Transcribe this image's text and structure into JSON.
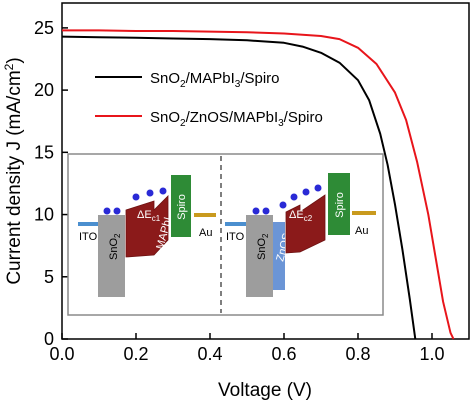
{
  "chart_data": {
    "type": "line",
    "xlabel": "Voltage (V)",
    "ylabel": "Current density J (mA/cm²)",
    "xlim": [
      0.0,
      1.1
    ],
    "ylim": [
      0,
      27
    ],
    "x_ticks": [
      "0.0",
      "0.2",
      "0.4",
      "0.6",
      "0.8",
      "1.0"
    ],
    "y_ticks": [
      "0",
      "5",
      "10",
      "15",
      "20",
      "25"
    ],
    "legend": {
      "placement": "top-center",
      "entries": [
        {
          "label": "SnO2/MAPbI3/Spiro",
          "color": "#000000"
        },
        {
          "label": "SnO2/ZnOS/MAPbI3/Spiro",
          "color": "#e8151b"
        }
      ]
    },
    "series": [
      {
        "name": "SnO2/MAPbI3/Spiro",
        "color": "#000000",
        "points": [
          [
            0.0,
            24.3
          ],
          [
            0.1,
            24.25
          ],
          [
            0.2,
            24.2
          ],
          [
            0.3,
            24.15
          ],
          [
            0.4,
            24.1
          ],
          [
            0.5,
            24.0
          ],
          [
            0.6,
            23.8
          ],
          [
            0.65,
            23.5
          ],
          [
            0.7,
            23.0
          ],
          [
            0.75,
            22.2
          ],
          [
            0.8,
            20.8
          ],
          [
            0.83,
            19.2
          ],
          [
            0.86,
            16.5
          ],
          [
            0.88,
            14.0
          ],
          [
            0.9,
            10.8
          ],
          [
            0.92,
            7.2
          ],
          [
            0.94,
            3.2
          ],
          [
            0.955,
            0.0
          ]
        ]
      },
      {
        "name": "SnO2/ZnOS/MAPbI3/Spiro",
        "color": "#e8151b",
        "points": [
          [
            0.0,
            24.8
          ],
          [
            0.1,
            24.8
          ],
          [
            0.2,
            24.75
          ],
          [
            0.3,
            24.75
          ],
          [
            0.4,
            24.7
          ],
          [
            0.5,
            24.65
          ],
          [
            0.6,
            24.55
          ],
          [
            0.7,
            24.35
          ],
          [
            0.75,
            24.1
          ],
          [
            0.8,
            23.4
          ],
          [
            0.85,
            22.1
          ],
          [
            0.9,
            19.8
          ],
          [
            0.93,
            17.6
          ],
          [
            0.96,
            14.2
          ],
          [
            0.99,
            10.0
          ],
          [
            1.01,
            6.5
          ],
          [
            1.03,
            3.0
          ],
          [
            1.05,
            0.5
          ],
          [
            1.058,
            0.0
          ]
        ]
      }
    ]
  },
  "inset": {
    "left": {
      "ito": "ITO",
      "etl": "SnO2",
      "perovskite": "MAPbI3",
      "delta": "ΔEc1",
      "htl": "Spiro",
      "electrode": "Au"
    },
    "right": {
      "ito": "ITO",
      "etl": "SnO2",
      "interlayer": "ZnOS",
      "perovskite": "MAPbI3",
      "delta": "ΔEc2",
      "htl": "Spiro",
      "electrode": "Au"
    },
    "colors": {
      "ito": "#4b8fcf",
      "snO2": "#9d9d9d",
      "znos": "#6b95d6",
      "perovskite": "#8b1a1a",
      "spiro": "#2e8b36",
      "au": "#c99a1e",
      "electron": "#2a2ad6"
    }
  }
}
